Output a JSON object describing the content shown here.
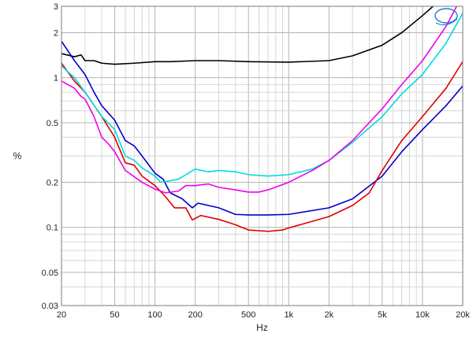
{
  "chart_data": {
    "type": "line",
    "title": "",
    "xlabel": "Hz",
    "ylabel": "%",
    "x_scale": "log",
    "y_scale": "log",
    "xlim": [
      20,
      20000
    ],
    "ylim": [
      0.03,
      3
    ],
    "grid": true,
    "x_ticks": [
      {
        "value": 20,
        "label": "20"
      },
      {
        "value": 50,
        "label": "50"
      },
      {
        "value": 100,
        "label": "100"
      },
      {
        "value": 200,
        "label": "200"
      },
      {
        "value": 500,
        "label": "500"
      },
      {
        "value": 1000,
        "label": "1k"
      },
      {
        "value": 2000,
        "label": "2k"
      },
      {
        "value": 5000,
        "label": "5k"
      },
      {
        "value": 10000,
        "label": "10k"
      },
      {
        "value": 20000,
        "label": "20k"
      }
    ],
    "y_ticks": [
      {
        "value": 0.03,
        "label": "0.03"
      },
      {
        "value": 0.05,
        "label": "0.05"
      },
      {
        "value": 0.1,
        "label": "0.1"
      },
      {
        "value": 0.2,
        "label": "0.2"
      },
      {
        "value": 0.5,
        "label": "0.5"
      },
      {
        "value": 1,
        "label": "1"
      },
      {
        "value": 2,
        "label": "2"
      },
      {
        "value": 3,
        "label": "3"
      }
    ],
    "series": [
      {
        "color": "#000000",
        "points": [
          [
            20,
            1.45
          ],
          [
            25,
            1.38
          ],
          [
            28,
            1.42
          ],
          [
            30,
            1.3
          ],
          [
            35,
            1.3
          ],
          [
            40,
            1.25
          ],
          [
            50,
            1.23
          ],
          [
            70,
            1.25
          ],
          [
            100,
            1.28
          ],
          [
            130,
            1.28
          ],
          [
            200,
            1.3
          ],
          [
            300,
            1.3
          ],
          [
            500,
            1.28
          ],
          [
            1000,
            1.27
          ],
          [
            2000,
            1.3
          ],
          [
            3000,
            1.4
          ],
          [
            5000,
            1.65
          ],
          [
            7000,
            2.0
          ],
          [
            10000,
            2.6
          ],
          [
            12000,
            3.0
          ]
        ]
      },
      {
        "color": "#0000cc",
        "points": [
          [
            20,
            1.75
          ],
          [
            25,
            1.3
          ],
          [
            30,
            1.05
          ],
          [
            35,
            0.8
          ],
          [
            40,
            0.65
          ],
          [
            50,
            0.52
          ],
          [
            60,
            0.38
          ],
          [
            70,
            0.35
          ],
          [
            80,
            0.3
          ],
          [
            100,
            0.23
          ],
          [
            115,
            0.21
          ],
          [
            130,
            0.17
          ],
          [
            160,
            0.155
          ],
          [
            190,
            0.135
          ],
          [
            210,
            0.145
          ],
          [
            300,
            0.135
          ],
          [
            400,
            0.122
          ],
          [
            500,
            0.121
          ],
          [
            700,
            0.121
          ],
          [
            1000,
            0.122
          ],
          [
            2000,
            0.135
          ],
          [
            3000,
            0.155
          ],
          [
            5000,
            0.22
          ],
          [
            7000,
            0.32
          ],
          [
            10000,
            0.45
          ],
          [
            15000,
            0.65
          ],
          [
            20000,
            0.88
          ]
        ]
      },
      {
        "color": "#dd0000",
        "points": [
          [
            20,
            1.25
          ],
          [
            25,
            0.95
          ],
          [
            30,
            0.8
          ],
          [
            40,
            0.55
          ],
          [
            50,
            0.4
          ],
          [
            60,
            0.27
          ],
          [
            70,
            0.26
          ],
          [
            80,
            0.22
          ],
          [
            100,
            0.19
          ],
          [
            120,
            0.16
          ],
          [
            140,
            0.135
          ],
          [
            170,
            0.135
          ],
          [
            190,
            0.112
          ],
          [
            220,
            0.12
          ],
          [
            300,
            0.113
          ],
          [
            400,
            0.104
          ],
          [
            500,
            0.096
          ],
          [
            700,
            0.094
          ],
          [
            900,
            0.096
          ],
          [
            1000,
            0.099
          ],
          [
            2000,
            0.118
          ],
          [
            3000,
            0.14
          ],
          [
            4000,
            0.17
          ],
          [
            5000,
            0.24
          ],
          [
            7000,
            0.38
          ],
          [
            10000,
            0.55
          ],
          [
            15000,
            0.85
          ],
          [
            20000,
            1.28
          ]
        ]
      },
      {
        "color": "#00dcdc",
        "points": [
          [
            20,
            1.2
          ],
          [
            25,
            1.0
          ],
          [
            30,
            0.8
          ],
          [
            40,
            0.55
          ],
          [
            50,
            0.45
          ],
          [
            60,
            0.3
          ],
          [
            70,
            0.28
          ],
          [
            80,
            0.25
          ],
          [
            100,
            0.22
          ],
          [
            110,
            0.2
          ],
          [
            130,
            0.205
          ],
          [
            150,
            0.21
          ],
          [
            200,
            0.245
          ],
          [
            250,
            0.235
          ],
          [
            300,
            0.24
          ],
          [
            400,
            0.235
          ],
          [
            500,
            0.225
          ],
          [
            700,
            0.22
          ],
          [
            1000,
            0.225
          ],
          [
            1500,
            0.245
          ],
          [
            2000,
            0.28
          ],
          [
            3000,
            0.37
          ],
          [
            5000,
            0.55
          ],
          [
            7000,
            0.78
          ],
          [
            10000,
            1.05
          ],
          [
            15000,
            1.7
          ],
          [
            20000,
            2.7
          ]
        ]
      },
      {
        "color": "#ee00ee",
        "points": [
          [
            20,
            0.95
          ],
          [
            25,
            0.85
          ],
          [
            28,
            0.75
          ],
          [
            30,
            0.72
          ],
          [
            35,
            0.55
          ],
          [
            40,
            0.4
          ],
          [
            45,
            0.36
          ],
          [
            50,
            0.32
          ],
          [
            60,
            0.24
          ],
          [
            80,
            0.2
          ],
          [
            100,
            0.18
          ],
          [
            120,
            0.17
          ],
          [
            150,
            0.175
          ],
          [
            170,
            0.19
          ],
          [
            200,
            0.19
          ],
          [
            250,
            0.195
          ],
          [
            300,
            0.185
          ],
          [
            400,
            0.178
          ],
          [
            500,
            0.172
          ],
          [
            600,
            0.172
          ],
          [
            700,
            0.178
          ],
          [
            1000,
            0.2
          ],
          [
            1500,
            0.24
          ],
          [
            2000,
            0.28
          ],
          [
            3000,
            0.38
          ],
          [
            5000,
            0.62
          ],
          [
            7000,
            0.9
          ],
          [
            10000,
            1.3
          ],
          [
            15000,
            2.2
          ],
          [
            18000,
            3.0
          ]
        ]
      }
    ]
  }
}
